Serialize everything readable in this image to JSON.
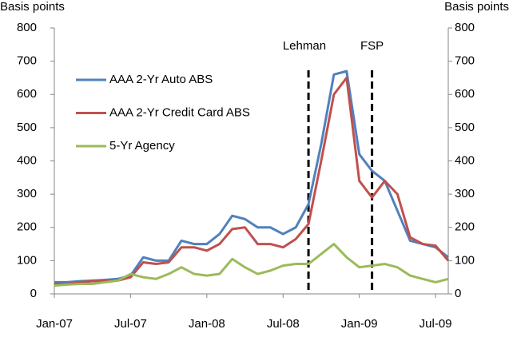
{
  "chart_data": {
    "type": "line",
    "y_label": "Basis points",
    "y2_label": "Basis points",
    "x": [
      "2007-01",
      "2007-02",
      "2007-03",
      "2007-04",
      "2007-05",
      "2007-06",
      "2007-07",
      "2007-08",
      "2007-09",
      "2007-10",
      "2007-11",
      "2007-12",
      "2008-01",
      "2008-02",
      "2008-03",
      "2008-04",
      "2008-05",
      "2008-06",
      "2008-07",
      "2008-08",
      "2008-09",
      "2008-10",
      "2008-11",
      "2008-12",
      "2009-01",
      "2009-02",
      "2009-03",
      "2009-04",
      "2009-05",
      "2009-06",
      "2009-07",
      "2009-08"
    ],
    "series": [
      {
        "name": "AAA 2-Yr Auto ABS",
        "color": "#4f81bd",
        "values": [
          35,
          35,
          38,
          40,
          42,
          45,
          55,
          110,
          100,
          100,
          160,
          150,
          150,
          180,
          235,
          225,
          200,
          200,
          180,
          200,
          270,
          450,
          660,
          670,
          420,
          370,
          340,
          250,
          160,
          150,
          140,
          110
        ]
      },
      {
        "name": "AAA 2-Yr Credit Card ABS",
        "color": "#c0504d",
        "values": [
          30,
          30,
          35,
          38,
          40,
          40,
          50,
          95,
          90,
          95,
          140,
          140,
          130,
          150,
          195,
          200,
          150,
          150,
          140,
          165,
          210,
          400,
          600,
          650,
          340,
          290,
          340,
          300,
          170,
          150,
          145,
          100
        ]
      },
      {
        "name": "5-Yr Agency",
        "color": "#9bbb59",
        "values": [
          25,
          28,
          30,
          30,
          35,
          40,
          60,
          50,
          45,
          60,
          80,
          60,
          55,
          60,
          105,
          80,
          60,
          70,
          85,
          90,
          90,
          120,
          150,
          110,
          80,
          85,
          90,
          80,
          55,
          45,
          35,
          45
        ]
      }
    ],
    "xlim": [
      "2007-01",
      "2009-08"
    ],
    "xticks": [
      {
        "value": "2007-01",
        "label": "Jan-07"
      },
      {
        "value": "2007-07",
        "label": "Jul-07"
      },
      {
        "value": "2008-01",
        "label": "Jan-08"
      },
      {
        "value": "2008-07",
        "label": "Jul-08"
      },
      {
        "value": "2009-01",
        "label": "Jan-09"
      },
      {
        "value": "2009-07",
        "label": "Jul-09"
      }
    ],
    "ylim": [
      0,
      800
    ],
    "yticks": [
      0,
      100,
      200,
      300,
      400,
      500,
      600,
      700,
      800
    ],
    "y2lim": [
      0,
      800
    ],
    "y2ticks": [
      0,
      100,
      200,
      300,
      400,
      500,
      600,
      700,
      800
    ],
    "annotations": [
      {
        "text": "Lehman",
        "x": "2008-09"
      },
      {
        "text": "FSP",
        "x": "2009-02"
      }
    ],
    "legend": "upper left"
  }
}
